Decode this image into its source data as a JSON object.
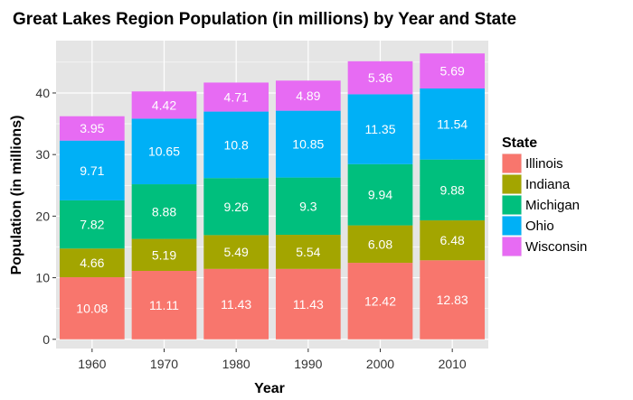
{
  "chart_data": {
    "type": "bar",
    "stacked": true,
    "title": "Great Lakes Region Population (in millions) by Year and State",
    "xlabel": "Year",
    "ylabel": "Population (in millions)",
    "categories": [
      "1960",
      "1970",
      "1980",
      "1990",
      "2000",
      "2010"
    ],
    "ylim": [
      -1.5,
      48.5
    ],
    "yticks": [
      0,
      10,
      20,
      30,
      40
    ],
    "grid": true,
    "legend": {
      "title": "State",
      "position": "right"
    },
    "series": [
      {
        "name": "Illinois",
        "color": "#F8766D",
        "values": [
          10.08,
          11.11,
          11.43,
          11.43,
          12.42,
          12.83
        ]
      },
      {
        "name": "Indiana",
        "color": "#A3A500",
        "values": [
          4.66,
          5.19,
          5.49,
          5.54,
          6.08,
          6.48
        ]
      },
      {
        "name": "Michigan",
        "color": "#00BF7D",
        "values": [
          7.82,
          8.88,
          9.26,
          9.3,
          9.94,
          9.88
        ]
      },
      {
        "name": "Ohio",
        "color": "#00B0F6",
        "values": [
          9.71,
          10.65,
          10.8,
          10.85,
          11.35,
          11.54
        ]
      },
      {
        "name": "Wisconsin",
        "color": "#E76BF3",
        "values": [
          3.95,
          4.42,
          4.71,
          4.89,
          5.36,
          5.69
        ]
      }
    ],
    "data_labels": [
      [
        "10.08",
        "11.11",
        "11.43",
        "11.43",
        "12.42",
        "12.83"
      ],
      [
        "4.66",
        "5.19",
        "5.49",
        "5.54",
        "6.08",
        "6.48"
      ],
      [
        "7.82",
        "8.88",
        "9.26",
        "9.3",
        "9.94",
        "9.88"
      ],
      [
        "9.71",
        "10.65",
        "10.8",
        "10.85",
        "11.35",
        "11.54"
      ],
      [
        "3.95",
        "4.42",
        "4.71",
        "4.89",
        "5.36",
        "5.69"
      ]
    ],
    "panel_background": "#E5E5E5",
    "grid_color": "#FFFFFF"
  }
}
